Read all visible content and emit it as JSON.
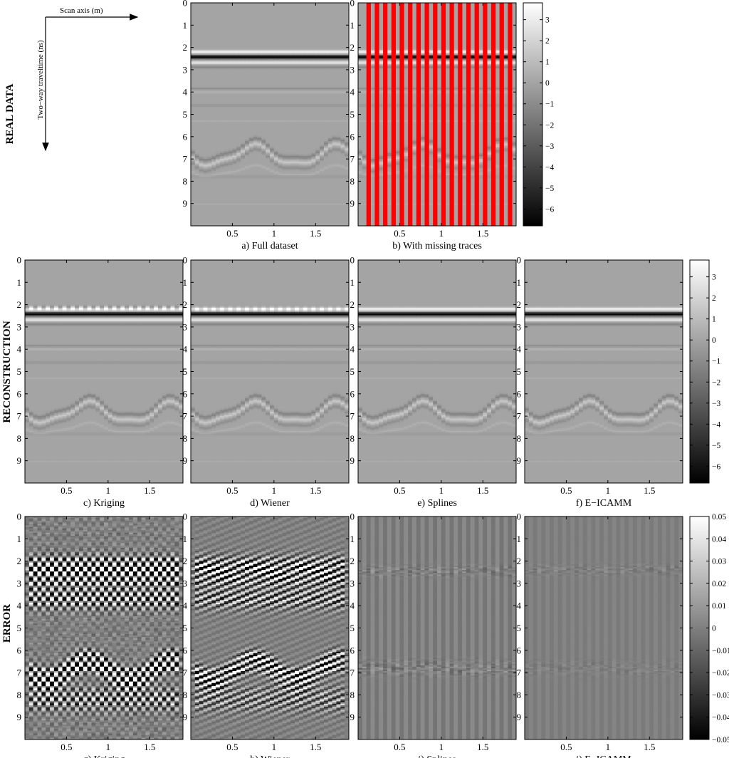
{
  "figure": {
    "row_labels": [
      "REAL DATA",
      "RECONSTRUCTION",
      "ERROR"
    ],
    "guide": {
      "scan_axis_label": "Scan axis (m)",
      "time_axis_label": "Two−way traveltime (ns)"
    }
  },
  "chart_data": [
    {
      "type": "heatmap",
      "row": 0,
      "caption": "a) Full dataset",
      "variant": "full",
      "x_ticks": [
        "0.5",
        "1",
        "1.5"
      ],
      "y_ticks": [
        "0",
        "1",
        "2",
        "3",
        "4",
        "5",
        "6",
        "7",
        "8",
        "9"
      ],
      "xlim": [
        0,
        1.9
      ],
      "ylim": [
        0,
        10
      ],
      "colormap": "gray",
      "clim": [
        -6.8,
        3.8
      ]
    },
    {
      "type": "heatmap",
      "row": 0,
      "caption": "b) With missing traces",
      "variant": "missing",
      "missing_trace_color": "#ff0000",
      "x_ticks": [
        "0.5",
        "1",
        "1.5"
      ],
      "y_ticks": [
        "0",
        "1",
        "2",
        "3",
        "4",
        "5",
        "6",
        "7",
        "8",
        "9"
      ],
      "xlim": [
        0,
        1.9
      ],
      "ylim": [
        0,
        10
      ],
      "colormap": "gray",
      "clim": [
        -6.8,
        3.8
      ]
    },
    {
      "type": "heatmap",
      "row": 1,
      "caption": "c) Kriging",
      "variant": "kriging",
      "x_ticks": [
        "0.5",
        "1",
        "1.5"
      ],
      "y_ticks": [
        "0",
        "1",
        "2",
        "3",
        "4",
        "5",
        "6",
        "7",
        "8",
        "9"
      ],
      "xlim": [
        0,
        1.9
      ],
      "ylim": [
        0,
        10
      ],
      "colormap": "gray",
      "clim": [
        -6.8,
        3.8
      ]
    },
    {
      "type": "heatmap",
      "row": 1,
      "caption": "d) Wiener",
      "variant": "wiener",
      "x_ticks": [
        "0.5",
        "1",
        "1.5"
      ],
      "y_ticks": [
        "0",
        "1",
        "2",
        "3",
        "4",
        "5",
        "6",
        "7",
        "8",
        "9"
      ],
      "xlim": [
        0,
        1.9
      ],
      "ylim": [
        0,
        10
      ],
      "colormap": "gray",
      "clim": [
        -6.8,
        3.8
      ]
    },
    {
      "type": "heatmap",
      "row": 1,
      "caption": "e) Splines",
      "variant": "splines",
      "x_ticks": [
        "0.5",
        "1",
        "1.5"
      ],
      "y_ticks": [
        "0",
        "1",
        "2",
        "3",
        "4",
        "5",
        "6",
        "7",
        "8",
        "9"
      ],
      "xlim": [
        0,
        1.9
      ],
      "ylim": [
        0,
        10
      ],
      "colormap": "gray",
      "clim": [
        -6.8,
        3.8
      ]
    },
    {
      "type": "heatmap",
      "row": 1,
      "caption": "f) E−ICAMM",
      "variant": "eicamm",
      "x_ticks": [
        "0.5",
        "1",
        "1.5"
      ],
      "y_ticks": [
        "0",
        "1",
        "2",
        "3",
        "4",
        "5",
        "6",
        "7",
        "8",
        "9"
      ],
      "xlim": [
        0,
        1.9
      ],
      "ylim": [
        0,
        10
      ],
      "colormap": "gray",
      "clim": [
        -6.8,
        3.8
      ]
    },
    {
      "type": "heatmap",
      "row": 2,
      "caption": "g) Kriging",
      "variant": "err_kriging",
      "x_ticks": [
        "0.5",
        "1",
        "1.5"
      ],
      "y_ticks": [
        "0",
        "1",
        "2",
        "3",
        "4",
        "5",
        "6",
        "7",
        "8",
        "9"
      ],
      "xlim": [
        0,
        1.9
      ],
      "ylim": [
        0,
        10
      ],
      "colormap": "gray",
      "clim": [
        -0.05,
        0.05
      ]
    },
    {
      "type": "heatmap",
      "row": 2,
      "caption": "h) Wiener",
      "variant": "err_wiener",
      "x_ticks": [
        "0.5",
        "1",
        "1.5"
      ],
      "y_ticks": [
        "0",
        "1",
        "2",
        "3",
        "4",
        "5",
        "6",
        "7",
        "8",
        "9"
      ],
      "xlim": [
        0,
        1.9
      ],
      "ylim": [
        0,
        10
      ],
      "colormap": "gray",
      "clim": [
        -0.05,
        0.05
      ]
    },
    {
      "type": "heatmap",
      "row": 2,
      "caption": "i) Splines",
      "variant": "err_splines",
      "x_ticks": [
        "0.5",
        "1",
        "1.5"
      ],
      "y_ticks": [
        "0",
        "1",
        "2",
        "3",
        "4",
        "5",
        "6",
        "7",
        "8",
        "9"
      ],
      "xlim": [
        0,
        1.9
      ],
      "ylim": [
        0,
        10
      ],
      "colormap": "gray",
      "clim": [
        -0.05,
        0.05
      ]
    },
    {
      "type": "heatmap",
      "row": 2,
      "caption": "j) E−ICAMM",
      "variant": "err_eicamm",
      "x_ticks": [
        "0.5",
        "1",
        "1.5"
      ],
      "y_ticks": [
        "0",
        "1",
        "2",
        "3",
        "4",
        "5",
        "6",
        "7",
        "8",
        "9"
      ],
      "xlim": [
        0,
        1.9
      ],
      "ylim": [
        0,
        10
      ],
      "colormap": "gray",
      "clim": [
        -0.05,
        0.05
      ]
    }
  ],
  "colorbars": [
    {
      "row": 0,
      "ticks": [
        "3",
        "2",
        "1",
        "0",
        "−1",
        "−2",
        "−3",
        "−4",
        "−5",
        "−6"
      ],
      "tick_values": [
        3,
        2,
        1,
        0,
        -1,
        -2,
        -3,
        -4,
        -5,
        -6
      ],
      "clim": [
        -6.8,
        3.8
      ]
    },
    {
      "row": 1,
      "ticks": [
        "3",
        "2",
        "1",
        "0",
        "−1",
        "−2",
        "−3",
        "−4",
        "−5",
        "−6"
      ],
      "tick_values": [
        3,
        2,
        1,
        0,
        -1,
        -2,
        -3,
        -4,
        -5,
        -6
      ],
      "clim": [
        -6.8,
        3.8
      ]
    },
    {
      "row": 2,
      "ticks": [
        "0.05",
        "0.04",
        "0.03",
        "0.02",
        "0.01",
        "0",
        "−0.01",
        "−0.02",
        "−0.03",
        "−0.04",
        "−0.05"
      ],
      "tick_values": [
        0.05,
        0.04,
        0.03,
        0.02,
        0.01,
        0,
        -0.01,
        -0.02,
        -0.03,
        -0.04,
        -0.05
      ],
      "clim": [
        -0.05,
        0.05
      ]
    }
  ]
}
